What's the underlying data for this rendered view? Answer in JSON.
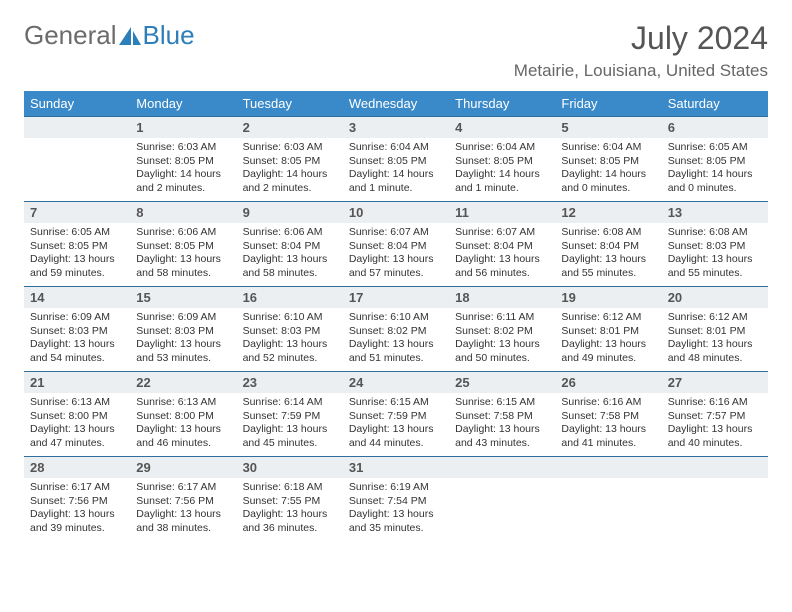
{
  "brand": {
    "part1": "General",
    "part2": "Blue"
  },
  "header": {
    "month": "July 2024",
    "location": "Metairie, Louisiana, United States"
  },
  "weekdays": [
    "Sunday",
    "Monday",
    "Tuesday",
    "Wednesday",
    "Thursday",
    "Friday",
    "Saturday"
  ],
  "colors": {
    "header_bg": "#3a89c9",
    "header_fg": "#ffffff",
    "row_border": "#2f6f9e",
    "daynum_bg": "#eceff1",
    "brand_gray": "#6b6b6b",
    "brand_blue": "#2d7fb9"
  },
  "weeks": [
    [
      null,
      {
        "n": "1",
        "sr": "6:03 AM",
        "ss": "8:05 PM",
        "dl": "14 hours and 2 minutes."
      },
      {
        "n": "2",
        "sr": "6:03 AM",
        "ss": "8:05 PM",
        "dl": "14 hours and 2 minutes."
      },
      {
        "n": "3",
        "sr": "6:04 AM",
        "ss": "8:05 PM",
        "dl": "14 hours and 1 minute."
      },
      {
        "n": "4",
        "sr": "6:04 AM",
        "ss": "8:05 PM",
        "dl": "14 hours and 1 minute."
      },
      {
        "n": "5",
        "sr": "6:04 AM",
        "ss": "8:05 PM",
        "dl": "14 hours and 0 minutes."
      },
      {
        "n": "6",
        "sr": "6:05 AM",
        "ss": "8:05 PM",
        "dl": "14 hours and 0 minutes."
      }
    ],
    [
      {
        "n": "7",
        "sr": "6:05 AM",
        "ss": "8:05 PM",
        "dl": "13 hours and 59 minutes."
      },
      {
        "n": "8",
        "sr": "6:06 AM",
        "ss": "8:05 PM",
        "dl": "13 hours and 58 minutes."
      },
      {
        "n": "9",
        "sr": "6:06 AM",
        "ss": "8:04 PM",
        "dl": "13 hours and 58 minutes."
      },
      {
        "n": "10",
        "sr": "6:07 AM",
        "ss": "8:04 PM",
        "dl": "13 hours and 57 minutes."
      },
      {
        "n": "11",
        "sr": "6:07 AM",
        "ss": "8:04 PM",
        "dl": "13 hours and 56 minutes."
      },
      {
        "n": "12",
        "sr": "6:08 AM",
        "ss": "8:04 PM",
        "dl": "13 hours and 55 minutes."
      },
      {
        "n": "13",
        "sr": "6:08 AM",
        "ss": "8:03 PM",
        "dl": "13 hours and 55 minutes."
      }
    ],
    [
      {
        "n": "14",
        "sr": "6:09 AM",
        "ss": "8:03 PM",
        "dl": "13 hours and 54 minutes."
      },
      {
        "n": "15",
        "sr": "6:09 AM",
        "ss": "8:03 PM",
        "dl": "13 hours and 53 minutes."
      },
      {
        "n": "16",
        "sr": "6:10 AM",
        "ss": "8:03 PM",
        "dl": "13 hours and 52 minutes."
      },
      {
        "n": "17",
        "sr": "6:10 AM",
        "ss": "8:02 PM",
        "dl": "13 hours and 51 minutes."
      },
      {
        "n": "18",
        "sr": "6:11 AM",
        "ss": "8:02 PM",
        "dl": "13 hours and 50 minutes."
      },
      {
        "n": "19",
        "sr": "6:12 AM",
        "ss": "8:01 PM",
        "dl": "13 hours and 49 minutes."
      },
      {
        "n": "20",
        "sr": "6:12 AM",
        "ss": "8:01 PM",
        "dl": "13 hours and 48 minutes."
      }
    ],
    [
      {
        "n": "21",
        "sr": "6:13 AM",
        "ss": "8:00 PM",
        "dl": "13 hours and 47 minutes."
      },
      {
        "n": "22",
        "sr": "6:13 AM",
        "ss": "8:00 PM",
        "dl": "13 hours and 46 minutes."
      },
      {
        "n": "23",
        "sr": "6:14 AM",
        "ss": "7:59 PM",
        "dl": "13 hours and 45 minutes."
      },
      {
        "n": "24",
        "sr": "6:15 AM",
        "ss": "7:59 PM",
        "dl": "13 hours and 44 minutes."
      },
      {
        "n": "25",
        "sr": "6:15 AM",
        "ss": "7:58 PM",
        "dl": "13 hours and 43 minutes."
      },
      {
        "n": "26",
        "sr": "6:16 AM",
        "ss": "7:58 PM",
        "dl": "13 hours and 41 minutes."
      },
      {
        "n": "27",
        "sr": "6:16 AM",
        "ss": "7:57 PM",
        "dl": "13 hours and 40 minutes."
      }
    ],
    [
      {
        "n": "28",
        "sr": "6:17 AM",
        "ss": "7:56 PM",
        "dl": "13 hours and 39 minutes."
      },
      {
        "n": "29",
        "sr": "6:17 AM",
        "ss": "7:56 PM",
        "dl": "13 hours and 38 minutes."
      },
      {
        "n": "30",
        "sr": "6:18 AM",
        "ss": "7:55 PM",
        "dl": "13 hours and 36 minutes."
      },
      {
        "n": "31",
        "sr": "6:19 AM",
        "ss": "7:54 PM",
        "dl": "13 hours and 35 minutes."
      },
      null,
      null,
      null
    ]
  ],
  "labels": {
    "sunrise": "Sunrise:",
    "sunset": "Sunset:",
    "daylight": "Daylight:"
  }
}
